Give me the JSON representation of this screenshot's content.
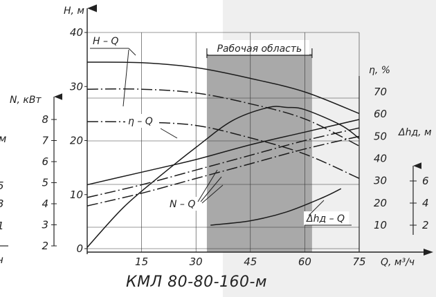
{
  "chart_data": {
    "type": "line",
    "caption": "КМЛ 80-80-160-м",
    "xlabel": "Q, м³/ч",
    "x_ticks": [
      "15",
      "30",
      "45",
      "60",
      "75"
    ],
    "xlim": [
      0,
      75
    ],
    "grid": true,
    "working_region": {
      "label": "Рабочая область",
      "x": [
        33,
        62
      ]
    },
    "axes": [
      {
        "label": "Н, м",
        "ticks": [
          "0",
          "10",
          "20",
          "30",
          "40"
        ],
        "range": [
          0,
          40
        ]
      },
      {
        "label": "N, кВт",
        "ticks": [
          "2",
          "3",
          "4",
          "5",
          "6",
          "7",
          "8"
        ],
        "range": [
          2,
          8
        ]
      },
      {
        "label": "η, %",
        "ticks": [
          "10",
          "20",
          "30",
          "40",
          "50",
          "60",
          "70"
        ],
        "range": [
          10,
          70
        ]
      },
      {
        "label": "Δhд, м",
        "ticks": [
          "2",
          "4",
          "6"
        ],
        "range": [
          2,
          6
        ]
      }
    ],
    "left_clipped_axis": {
      "label": "м",
      "ticks": [
        "5",
        "3",
        "1"
      ],
      "xlabel": "ч"
    },
    "series": [
      {
        "name": "H – Q",
        "axis": "Н, м",
        "style": "solid",
        "x": [
          0,
          15,
          30,
          45,
          60,
          75
        ],
        "y": [
          34.5,
          34.4,
          33.5,
          31.5,
          29,
          25
        ]
      },
      {
        "axis": "Н, м",
        "style": "dash-dot",
        "x": [
          0,
          15,
          30,
          45,
          60,
          75
        ],
        "y": [
          29.5,
          29.5,
          28.8,
          26.8,
          24,
          19
        ]
      },
      {
        "axis": "Н, м",
        "style": "dash-dot",
        "x": [
          0,
          15,
          30,
          45,
          60,
          75
        ],
        "y": [
          23.5,
          23.4,
          22.8,
          20.5,
          17.5,
          13
        ]
      },
      {
        "name": "η – Q",
        "axis": "η, %",
        "style": "solid",
        "x": [
          0,
          10,
          20,
          30,
          40,
          50,
          55,
          60,
          70,
          75
        ],
        "y": [
          0,
          18,
          32,
          45,
          57,
          63,
          63,
          62,
          55,
          49
        ]
      },
      {
        "name": "N – Q",
        "axis": "N, кВт",
        "style": "solid",
        "x": [
          0,
          15,
          30,
          45,
          60,
          75
        ],
        "y": [
          4.9,
          5.5,
          6.1,
          6.8,
          7.4,
          8.0
        ]
      },
      {
        "axis": "N, кВт",
        "style": "dash-dot",
        "x": [
          0,
          15,
          30,
          45,
          60,
          75
        ],
        "y": [
          4.3,
          4.9,
          5.6,
          6.3,
          7.0,
          7.6
        ]
      },
      {
        "axis": "N, кВт",
        "style": "dash-dot",
        "x": [
          0,
          15,
          30,
          45,
          60,
          75
        ],
        "y": [
          3.9,
          4.5,
          5.2,
          5.9,
          6.6,
          7.2
        ]
      },
      {
        "name": "Δhд – Q",
        "axis": "Δhд, м",
        "style": "solid",
        "x": [
          34,
          45,
          55,
          65,
          70
        ],
        "y": [
          2.0,
          2.4,
          3.2,
          4.5,
          5.3
        ]
      }
    ]
  }
}
